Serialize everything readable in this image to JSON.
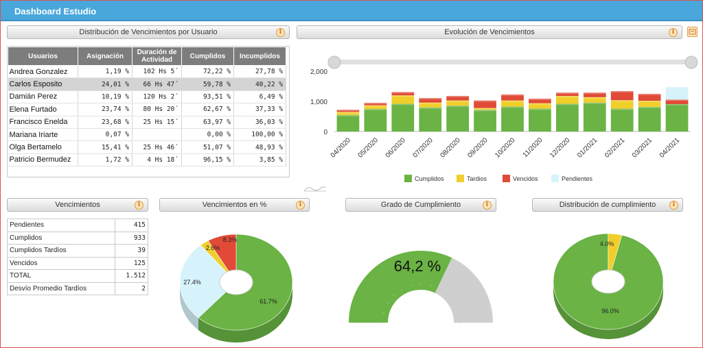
{
  "app": {
    "title": "Dashboard Estudio"
  },
  "panels": {
    "distribucion_usuario": "Distribución de Vencimientos por Usuario",
    "evolucion": "Evolución de Vencimientos",
    "vencimientos": "Vencimientos",
    "vencimientos_pct": "Vencimientos en %",
    "grado": "Grado de Cumplimiento",
    "distribucion_cumplimiento": "Distribución de cumplimiento"
  },
  "user_table": {
    "headers": [
      "Usuarios",
      "Asignación",
      "Duración de Actividad",
      "Cumplidos",
      "Incumplidos"
    ],
    "rows": [
      [
        "Andrea Gonzalez",
        "1,19 %",
        "102 Hs 5´",
        "72,22 %",
        "27,78 %"
      ],
      [
        "Carlos Esposito",
        "24,01 %",
        "66 Hs 47´",
        "59,78 %",
        "40,22 %"
      ],
      [
        "Damián Perez",
        "10,19 %",
        "120 Hs 2´",
        "93,51 %",
        "6,49 %"
      ],
      [
        "Elena Furtado",
        "23,74 %",
        "80 Hs 20´",
        "62,67 %",
        "37,33 %"
      ],
      [
        "Francisco Enelda",
        "23,68 %",
        "25 Hs 15´",
        "63,97 %",
        "36,03 %"
      ],
      [
        "Mariana Iriarte",
        "0,07 %",
        "",
        "0,00 %",
        "100,00 %"
      ],
      [
        "Olga Bertamelo",
        "15,41 %",
        "25 Hs 46´",
        "51,07 %",
        "48,93 %"
      ],
      [
        "Patricio Bermudez",
        "1,72 %",
        "4 Hs 18´",
        "96,15 %",
        "3,85 %"
      ]
    ],
    "selected_row": 1
  },
  "vencimientos": [
    {
      "label": "Pendientes",
      "value": "415"
    },
    {
      "label": "Cumplidos",
      "value": "933"
    },
    {
      "label": "Cumplidos Tardíos",
      "value": "39"
    },
    {
      "label": "Vencidos",
      "value": "125"
    },
    {
      "label": "TOTAL",
      "value": "1.512"
    },
    {
      "label": "Desvío Promedio Tardíos",
      "value": "2"
    }
  ],
  "colors": {
    "cumplidos": "#6ab344",
    "tardios": "#f0cf2a",
    "vencidos": "#e04a37",
    "pendientes": "#d6f3fb",
    "header": "#4aa7db",
    "gauge_rest": "#cfcfcf"
  },
  "chart_data": [
    {
      "type": "bar",
      "stacked": true,
      "categories": [
        "04/2020",
        "05/2020",
        "06/2020",
        "07/2020",
        "08/2020",
        "09/2020",
        "10/2020",
        "11/2020",
        "12/2020",
        "01/2021",
        "02/2021",
        "03/2021",
        "04/2021"
      ],
      "series": [
        {
          "name": "Cumplidos",
          "color": "#6ab344",
          "values": [
            550,
            750,
            920,
            800,
            860,
            720,
            830,
            760,
            920,
            960,
            760,
            820,
            910
          ]
        },
        {
          "name": "Tardios",
          "color": "#f0cf2a",
          "values": [
            100,
            120,
            280,
            160,
            170,
            60,
            200,
            180,
            260,
            180,
            280,
            200,
            0
          ]
        },
        {
          "name": "Vencidos",
          "color": "#e04a37",
          "values": [
            70,
            80,
            110,
            150,
            150,
            250,
            200,
            150,
            110,
            150,
            300,
            230,
            150
          ]
        },
        {
          "name": "Pendientes",
          "color": "#d6f3fb",
          "values": [
            0,
            0,
            0,
            0,
            0,
            0,
            0,
            0,
            0,
            0,
            0,
            0,
            420
          ]
        }
      ],
      "yticks": [
        "2,000",
        "1,000",
        "0"
      ],
      "ylim": [
        0,
        2000
      ],
      "legend": "bottom"
    },
    {
      "type": "pie",
      "labels": [
        "Cumplidos",
        "Pendientes",
        "Tardios",
        "Vencidos"
      ],
      "values": [
        61.7,
        27.4,
        2.6,
        8.3
      ],
      "value_labels": [
        "61.7%",
        "27.4%",
        "2.6%",
        "8.3%"
      ]
    },
    {
      "type": "gauge",
      "value": 64.2,
      "label": "64,2 %"
    },
    {
      "type": "pie",
      "labels": [
        "Cumplidos",
        "Tardios"
      ],
      "values": [
        96.0,
        4.0
      ],
      "value_labels": [
        "96.0%",
        "4.0%"
      ]
    }
  ]
}
